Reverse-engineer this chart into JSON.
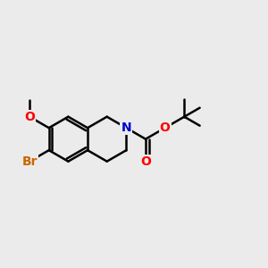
{
  "bg_color": "#ebebeb",
  "bond_color": "#000000",
  "bond_width": 1.8,
  "atom_colors": {
    "N": "#0000cc",
    "O": "#ff0000",
    "Br": "#cc6600",
    "C": "#000000"
  },
  "font_size_atom": 10,
  "figsize": [
    3.0,
    3.0
  ],
  "dpi": 100
}
